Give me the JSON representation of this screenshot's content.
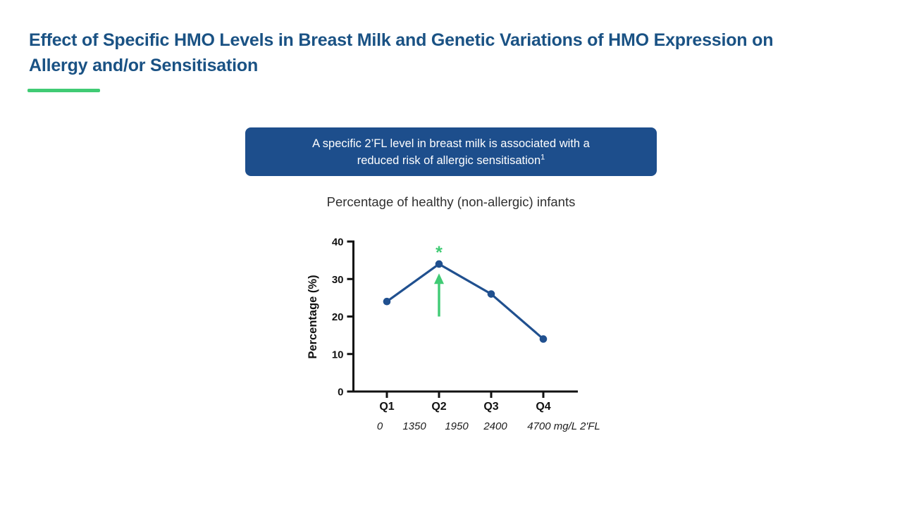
{
  "slide": {
    "title": "Effect of Specific HMO Levels in Breast Milk and Genetic Variations of HMO Expression on Allergy and/or Sensitisation",
    "banner": {
      "line1": "A specific 2’FL level in breast milk is associated with a",
      "line2": "reduced risk of allergic sensitisation",
      "superscript": "1"
    },
    "colors": {
      "title_blue": "#1a5284",
      "banner_blue": "#1d4e8c",
      "accent_green": "#40cb74",
      "line_blue": "#20508f",
      "axis_black": "#111111"
    }
  },
  "chart_data": {
    "type": "line",
    "title": "Percentage of healthy (non-allergic) infants",
    "categories": [
      "Q1",
      "Q2",
      "Q3",
      "Q4"
    ],
    "values": [
      24,
      34,
      26,
      14
    ],
    "xlabel": "",
    "ylabel": "Percentage (%)",
    "ylim": [
      0,
      40
    ],
    "yticks": [
      0,
      10,
      20,
      30,
      40
    ],
    "x_boundary_labels": [
      "0",
      "1350",
      "1950",
      "2400",
      "4700 mg/L 2'FL"
    ],
    "grid": false,
    "legend": "none",
    "line_color": "#20508f",
    "marker": "circle",
    "annotation": {
      "symbol": "*",
      "category": "Q2",
      "color": "#40cb74",
      "arrow": {
        "from_value": 20,
        "to_value": 31.5
      }
    }
  }
}
